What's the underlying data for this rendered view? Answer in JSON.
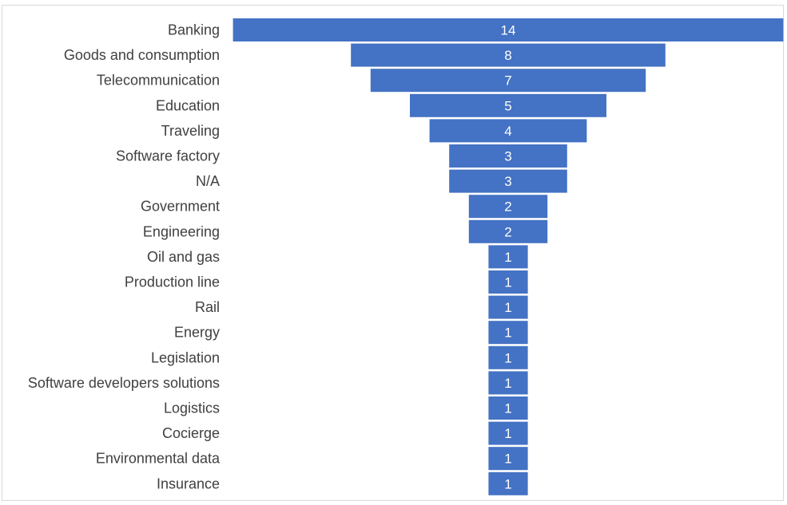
{
  "chart_data": {
    "type": "bar",
    "variant": "funnel",
    "title": "",
    "xlabel": "",
    "ylabel": "",
    "categories": [
      "Banking",
      "Goods and consumption",
      "Telecommunication",
      "Education",
      "Traveling",
      "Software factory",
      "N/A",
      "Government",
      "Engineering",
      "Oil and gas",
      "Production line",
      "Rail",
      "Energy",
      "Legislation",
      "Software developers solutions",
      "Logistics",
      "Cocierge",
      "Environmental data",
      "Insurance"
    ],
    "values": [
      14,
      8,
      7,
      5,
      4,
      3,
      3,
      2,
      2,
      1,
      1,
      1,
      1,
      1,
      1,
      1,
      1,
      1,
      1
    ],
    "bar_color": "#4472C4",
    "label_color": "#ffffff",
    "category_text_color": "#404040",
    "grid": false,
    "legend": "none"
  }
}
